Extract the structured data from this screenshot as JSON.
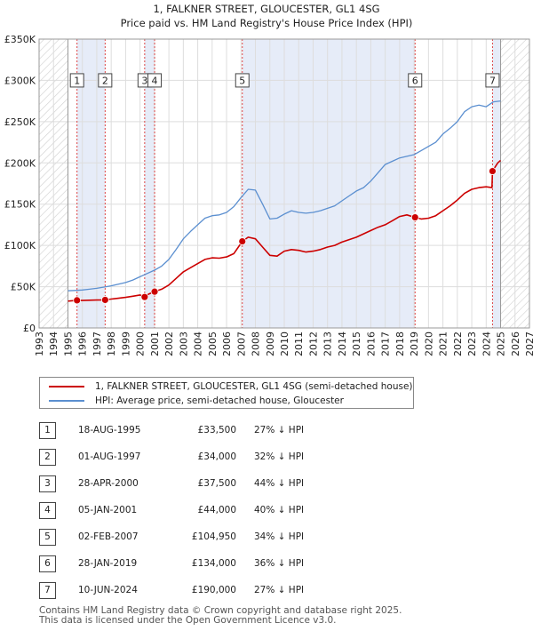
{
  "title_line1": "1, FALKNER STREET, GLOUCESTER, GL1 4SG",
  "title_line2": "Price paid vs. HM Land Registry's House Price Index (HPI)",
  "colors": {
    "property": "#cc0000",
    "hpi": "#5b8fd0",
    "shade": "#e6ecf8",
    "marker_line": "#dd4444"
  },
  "legend": {
    "property_label": "1, FALKNER STREET, GLOUCESTER, GL1 4SG (semi-detached house)",
    "hpi_label": "HPI: Average price, semi-detached house, Gloucester"
  },
  "transactions": [
    {
      "num": "1",
      "date": "18-AUG-1995",
      "price": "£33,500",
      "hpi": "27% ↓ HPI"
    },
    {
      "num": "2",
      "date": "01-AUG-1997",
      "price": "£34,000",
      "hpi": "32% ↓ HPI"
    },
    {
      "num": "3",
      "date": "28-APR-2000",
      "price": "£37,500",
      "hpi": "44% ↓ HPI"
    },
    {
      "num": "4",
      "date": "05-JAN-2001",
      "price": "£44,000",
      "hpi": "40% ↓ HPI"
    },
    {
      "num": "5",
      "date": "02-FEB-2007",
      "price": "£104,950",
      "hpi": "34% ↓ HPI"
    },
    {
      "num": "6",
      "date": "28-JAN-2019",
      "price": "£134,000",
      "hpi": "36% ↓ HPI"
    },
    {
      "num": "7",
      "date": "10-JUN-2024",
      "price": "£190,000",
      "hpi": "27% ↓ HPI"
    }
  ],
  "footer_line1": "Contains HM Land Registry data © Crown copyright and database right 2025.",
  "footer_line2": "This data is licensed under the Open Government Licence v3.0.",
  "chart_data": {
    "type": "line",
    "title": "1, FALKNER STREET, GLOUCESTER, GL1 4SG — Price paid vs. HM Land Registry's House Price Index (HPI)",
    "xlabel": "",
    "ylabel": "",
    "xlim": [
      1993,
      2027
    ],
    "ylim": [
      0,
      350000
    ],
    "x_ticks": [
      1993,
      1994,
      1995,
      1996,
      1997,
      1998,
      1999,
      2000,
      2001,
      2002,
      2003,
      2004,
      2005,
      2006,
      2007,
      2008,
      2009,
      2010,
      2011,
      2012,
      2013,
      2014,
      2015,
      2016,
      2017,
      2018,
      2019,
      2020,
      2021,
      2022,
      2023,
      2024,
      2025,
      2026,
      2027
    ],
    "y_ticks": [
      0,
      50000,
      100000,
      150000,
      200000,
      250000,
      300000,
      350000
    ],
    "y_tick_labels": [
      "£0",
      "£50K",
      "£100K",
      "£150K",
      "£200K",
      "£250K",
      "£300K",
      "£350K"
    ],
    "hatched_ranges": [
      [
        1993,
        1995.0
      ],
      [
        2025.0,
        2027
      ]
    ],
    "shaded_ranges": [
      [
        1995.63,
        1997.58
      ],
      [
        2000.32,
        2001.01
      ],
      [
        2007.09,
        2019.07
      ],
      [
        2024.44,
        2025.0
      ]
    ],
    "series": [
      {
        "name": "1, FALKNER STREET, GLOUCESTER, GL1 4SG (semi-detached house)",
        "x": [
          1995.0,
          1995.63,
          1996.0,
          1996.5,
          1997.0,
          1997.58,
          1998.0,
          1998.5,
          1999.0,
          1999.5,
          2000.0,
          2000.32,
          2000.6,
          2001.01,
          2001.5,
          2002.0,
          2002.5,
          2003.0,
          2003.5,
          2004.0,
          2004.5,
          2005.0,
          2005.5,
          2006.0,
          2006.5,
          2007.09,
          2007.5,
          2008.0,
          2008.5,
          2009.0,
          2009.5,
          2010.0,
          2010.5,
          2011.0,
          2011.5,
          2012.0,
          2012.5,
          2013.0,
          2013.5,
          2014.0,
          2014.5,
          2015.0,
          2015.5,
          2016.0,
          2016.5,
          2017.0,
          2017.5,
          2018.0,
          2018.5,
          2019.07,
          2019.5,
          2020.0,
          2020.5,
          2021.0,
          2021.5,
          2022.0,
          2022.5,
          2023.0,
          2023.5,
          2024.0,
          2024.4,
          2024.44,
          2024.8,
          2025.0
        ],
        "values": [
          32500,
          33500,
          33300,
          33600,
          33800,
          34000,
          35000,
          36000,
          37000,
          38500,
          40000,
          37500,
          41000,
          44000,
          47000,
          52000,
          60000,
          68000,
          73000,
          78000,
          83000,
          85000,
          84500,
          86000,
          90000,
          104950,
          110000,
          108000,
          98000,
          88000,
          87000,
          93000,
          95000,
          94000,
          92000,
          93000,
          95000,
          98000,
          100000,
          104000,
          107000,
          110000,
          114000,
          118000,
          122000,
          125000,
          130000,
          135000,
          137000,
          134000,
          132000,
          133000,
          136000,
          142000,
          148000,
          155000,
          163000,
          168000,
          170000,
          171000,
          170000,
          190000,
          200000,
          203000
        ]
      },
      {
        "name": "HPI: Average price, semi-detached house, Gloucester",
        "x": [
          1995.0,
          1995.5,
          1996.0,
          1996.5,
          1997.0,
          1997.5,
          1998.0,
          1998.5,
          1999.0,
          1999.5,
          2000.0,
          2000.5,
          2001.0,
          2001.5,
          2002.0,
          2002.5,
          2003.0,
          2003.5,
          2004.0,
          2004.5,
          2005.0,
          2005.5,
          2006.0,
          2006.5,
          2007.0,
          2007.5,
          2008.0,
          2008.5,
          2009.0,
          2009.5,
          2010.0,
          2010.5,
          2011.0,
          2011.5,
          2012.0,
          2012.5,
          2013.0,
          2013.5,
          2014.0,
          2014.5,
          2015.0,
          2015.5,
          2016.0,
          2016.5,
          2017.0,
          2017.5,
          2018.0,
          2018.5,
          2019.0,
          2019.5,
          2020.0,
          2020.5,
          2021.0,
          2021.5,
          2022.0,
          2022.5,
          2023.0,
          2023.5,
          2024.0,
          2024.5,
          2025.0
        ],
        "values": [
          45000,
          45500,
          46000,
          47000,
          48000,
          49500,
          51000,
          53000,
          55000,
          58000,
          62000,
          66000,
          70000,
          75000,
          83000,
          95000,
          108000,
          117000,
          125000,
          133000,
          136000,
          137000,
          140000,
          147000,
          158000,
          168000,
          167000,
          150000,
          132000,
          133000,
          138000,
          142000,
          140000,
          139000,
          140000,
          142000,
          145000,
          148000,
          154000,
          160000,
          166000,
          170000,
          178000,
          188000,
          198000,
          202000,
          206000,
          208000,
          210000,
          215000,
          220000,
          225000,
          235000,
          242000,
          250000,
          262000,
          268000,
          270000,
          268000,
          274000,
          275000
        ]
      }
    ],
    "transaction_points": [
      {
        "label": "1",
        "x": 1995.63,
        "y": 33500
      },
      {
        "label": "2",
        "x": 1997.58,
        "y": 34000
      },
      {
        "label": "3",
        "x": 2000.32,
        "y": 37500
      },
      {
        "label": "4",
        "x": 2001.01,
        "y": 44000
      },
      {
        "label": "5",
        "x": 2007.09,
        "y": 104950
      },
      {
        "label": "6",
        "x": 2019.07,
        "y": 134000
      },
      {
        "label": "7",
        "x": 2024.44,
        "y": 190000
      }
    ],
    "marker_label_value": 300000
  }
}
